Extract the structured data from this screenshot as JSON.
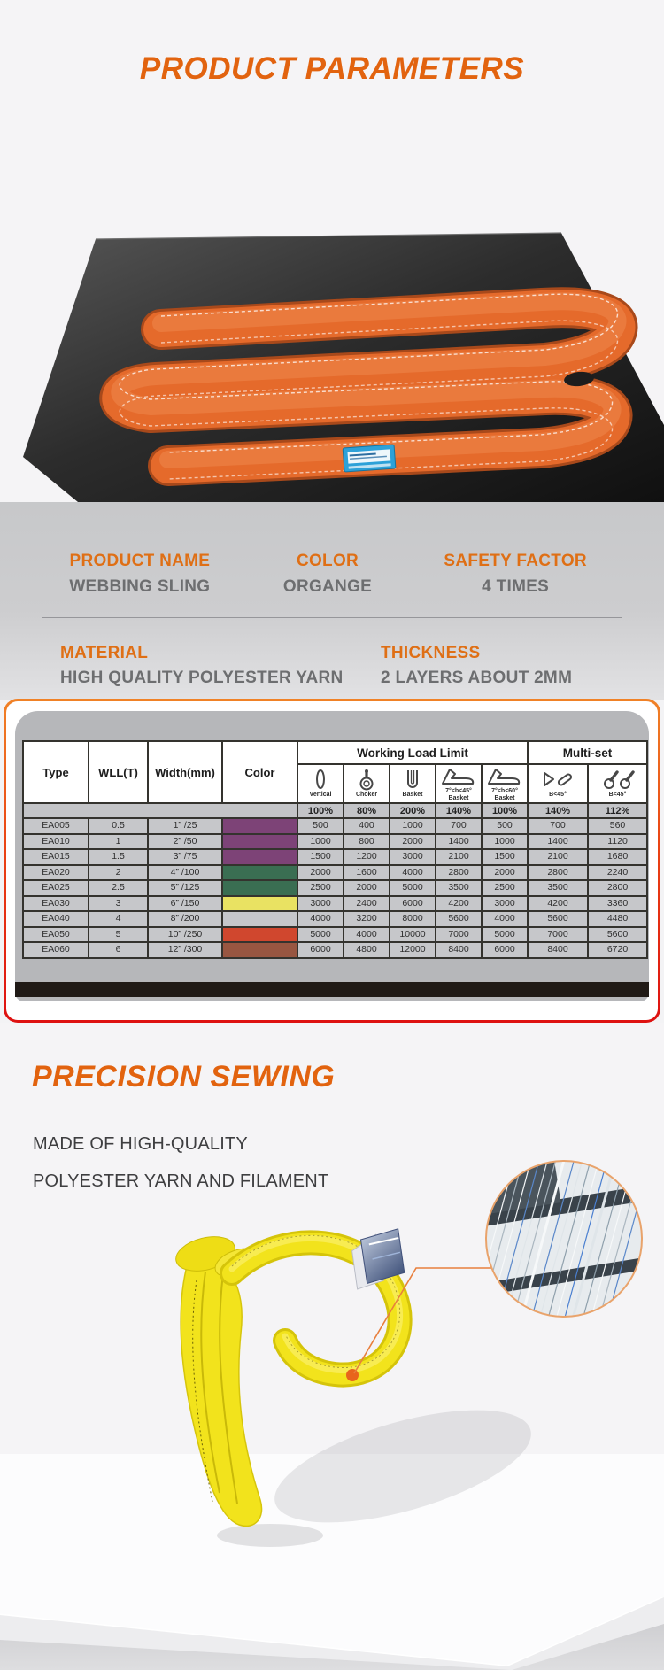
{
  "header": {
    "title": "PRODUCT PARAMETERS"
  },
  "colors": {
    "accent_orange": "#e2630f",
    "table_border_red": "#e8391a",
    "sling_orange": "#e56a2b",
    "sling_yellow": "#f2e31c",
    "label_blue": "#2da1d8"
  },
  "specs": {
    "product_name": {
      "label": "PRODUCT NAME",
      "value": "WEBBING SLING"
    },
    "color": {
      "label": "COLOR",
      "value": "ORGANGE"
    },
    "safety_factor": {
      "label": "SAFETY FACTOR",
      "value": "4 TIMES"
    },
    "material": {
      "label": "MATERIAL",
      "value": "HIGH QUALITY POLYESTER YARN"
    },
    "thickness": {
      "label": "THICKNESS",
      "value": "2 LAYERS ABOUT 2MM"
    }
  },
  "table": {
    "col_headers": {
      "type": "Type",
      "wll": "WLL(T)",
      "width": "Width(mm)",
      "color": "Color"
    },
    "group_headers": {
      "wll": "Working Load Limit",
      "multi": "Multi-set"
    },
    "sub_cols": [
      {
        "icon": "vertical-sling-icon",
        "label": "Vertical",
        "label2": "",
        "pct": "100%"
      },
      {
        "icon": "choker-sling-icon",
        "label": "Choker",
        "label2": "",
        "pct": "80%"
      },
      {
        "icon": "basket-sling-icon",
        "label": "Basket",
        "label2": "",
        "pct": "200%"
      },
      {
        "icon": "angled-basket-45-icon",
        "label": "7°<b<45°",
        "label2": "Basket",
        "pct": "140%"
      },
      {
        "icon": "angled-basket-60-icon",
        "label": "7°<b<60°",
        "label2": "Basket",
        "pct": "100%"
      },
      {
        "icon": "multi-set-legs-icon",
        "label": "B<45°",
        "label2": "",
        "pct": "140%"
      },
      {
        "icon": "multi-set-rings-icon",
        "label": "B<45°",
        "label2": "",
        "pct": "112%"
      }
    ],
    "rows": [
      {
        "type": "EA005",
        "wll": "0.5",
        "width": "1” /25",
        "color_hex": "#7d4377",
        "values": [
          "500",
          "400",
          "1000",
          "700",
          "500",
          "700",
          "560"
        ]
      },
      {
        "type": "EA010",
        "wll": "1",
        "width": "2” /50",
        "color_hex": "#7d4377",
        "values": [
          "1000",
          "800",
          "2000",
          "1400",
          "1000",
          "1400",
          "1120"
        ]
      },
      {
        "type": "EA015",
        "wll": "1.5",
        "width": "3” /75",
        "color_hex": "#7d4377",
        "values": [
          "1500",
          "1200",
          "3000",
          "2100",
          "1500",
          "2100",
          "1680"
        ]
      },
      {
        "type": "EA020",
        "wll": "2",
        "width": "4” /100",
        "color_hex": "#3a6e52",
        "values": [
          "2000",
          "1600",
          "4000",
          "2800",
          "2000",
          "2800",
          "2240"
        ]
      },
      {
        "type": "EA025",
        "wll": "2.5",
        "width": "5” /125",
        "color_hex": "#3a6e52",
        "values": [
          "2500",
          "2000",
          "5000",
          "3500",
          "2500",
          "3500",
          "2800"
        ]
      },
      {
        "type": "EA030",
        "wll": "3",
        "width": "6” /150",
        "color_hex": "#e9e262",
        "values": [
          "3000",
          "2400",
          "6000",
          "4200",
          "3000",
          "4200",
          "3360"
        ]
      },
      {
        "type": "EA040",
        "wll": "4",
        "width": "8” /200",
        "color_hex": "",
        "values": [
          "4000",
          "3200",
          "8000",
          "5600",
          "4000",
          "5600",
          "4480"
        ]
      },
      {
        "type": "EA050",
        "wll": "5",
        "width": "10” /250",
        "color_hex": "#d0472e",
        "values": [
          "5000",
          "4000",
          "10000",
          "7000",
          "5000",
          "7000",
          "5600"
        ]
      },
      {
        "type": "EA060",
        "wll": "6",
        "width": "12” /300",
        "color_hex": "#985641",
        "values": [
          "6000",
          "4800",
          "12000",
          "8400",
          "6000",
          "8400",
          "6720"
        ]
      }
    ]
  },
  "sewing": {
    "title": "PRECISION SEWING",
    "desc_line1": "MADE OF HIGH-QUALITY",
    "desc_line2": "POLYESTER YARN AND FILAMENT"
  }
}
